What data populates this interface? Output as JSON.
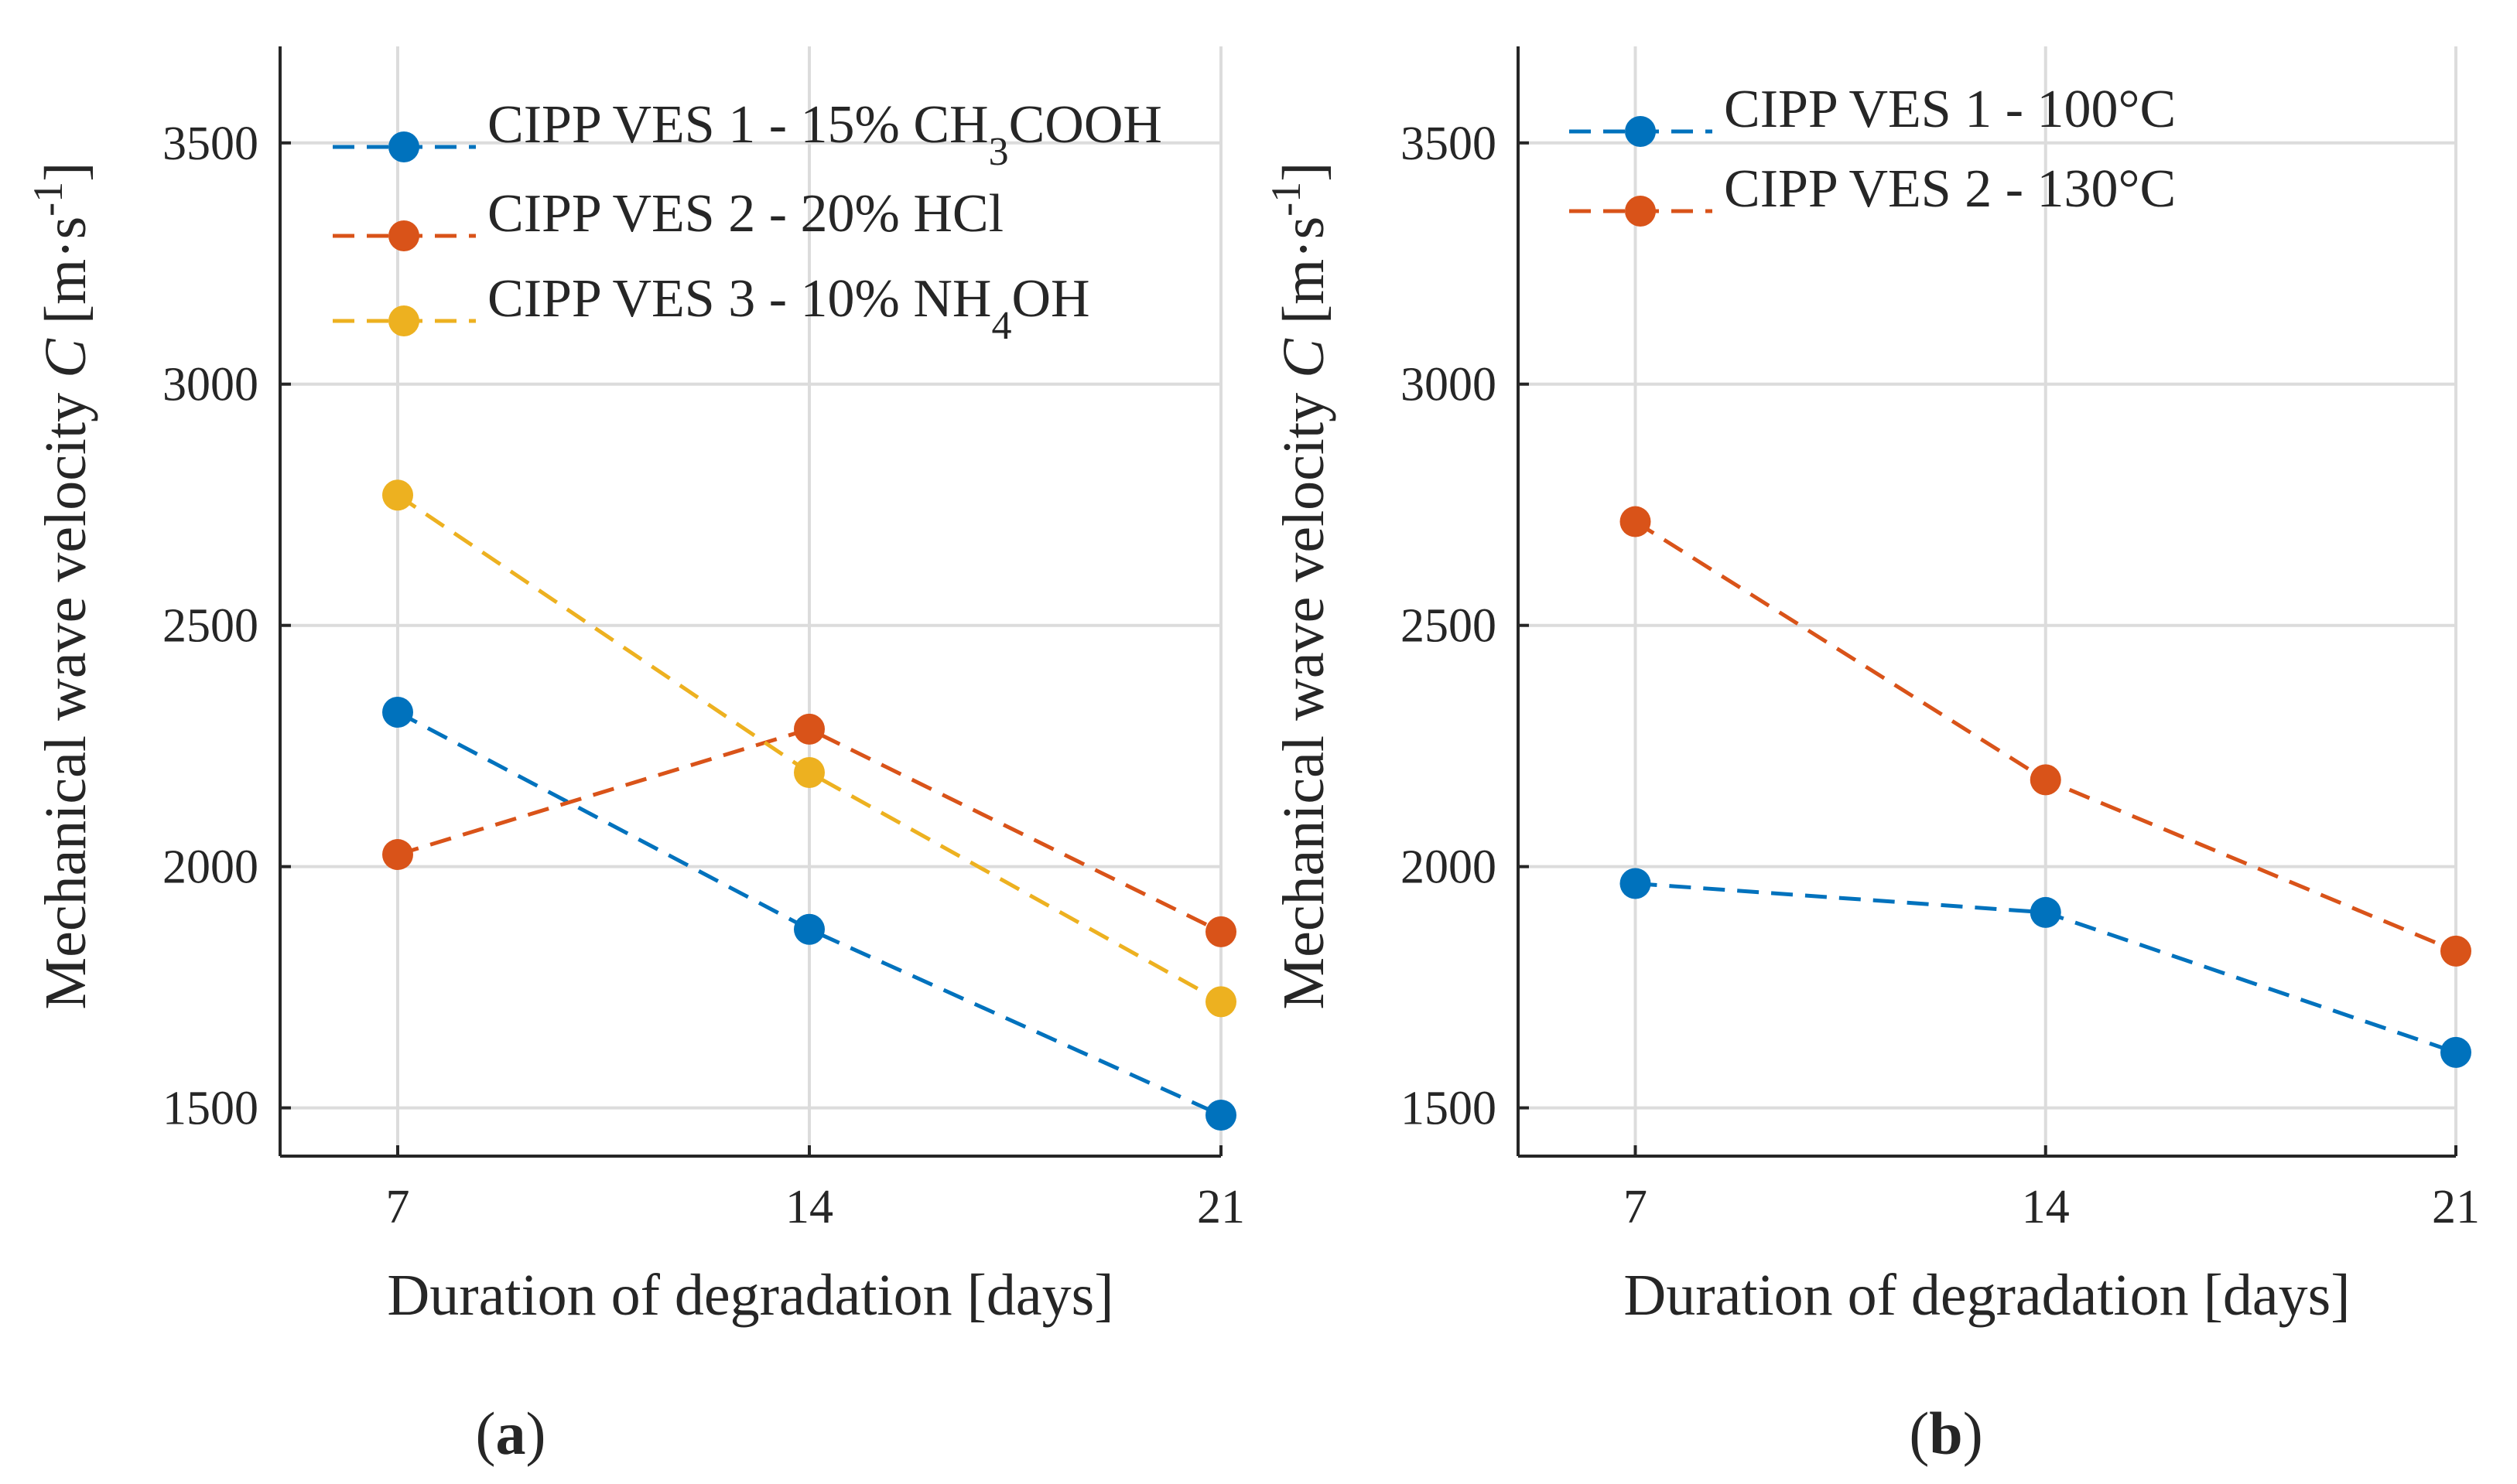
{
  "chart_data": [
    {
      "type": "line",
      "panel_label": "a",
      "xlabel": "Duration of degradation [days]",
      "ylabel": {
        "main": "Mechanical wave velocity",
        "symbol": "C",
        "unit_open": "[m·s",
        "unit_exp": "-1",
        "unit_close": "]"
      },
      "x": [
        7,
        14,
        21
      ],
      "x_ticks": [
        "7",
        "14",
        "21"
      ],
      "xlim": [
        5,
        21
      ],
      "y_ticks": [
        "1500",
        "2000",
        "2500",
        "3000",
        "3500"
      ],
      "y_tick_values": [
        1500,
        2000,
        2500,
        3000,
        3500
      ],
      "ylim": [
        1400,
        3700
      ],
      "grid": true,
      "legend_position": "top-right",
      "series": [
        {
          "name": "CIPP VES 1 - 15% CH3COOH",
          "label_main": "CIPP VES 1 - 15% CH",
          "label_sub": "3",
          "label_tail": "COOH",
          "color": "#0072BD",
          "values": [
            2320,
            1870,
            1485
          ]
        },
        {
          "name": "CIPP VES 2 - 20% HCl",
          "label_main": "CIPP VES 2 - 20% HCl",
          "label_sub": "",
          "label_tail": "",
          "color": "#D95319",
          "values": [
            2025,
            2285,
            1865
          ]
        },
        {
          "name": "CIPP VES 3 - 10% NH4OH",
          "label_main": "CIPP VES 3 - 10% NH",
          "label_sub": "4",
          "label_tail": "OH",
          "color": "#EDB120",
          "values": [
            2770,
            2195,
            1720
          ]
        }
      ]
    },
    {
      "type": "line",
      "panel_label": "b",
      "xlabel": "Duration of degradation [days]",
      "ylabel": {
        "main": "Mechanical wave velocity",
        "symbol": "C",
        "unit_open": "[m·s",
        "unit_exp": "-1",
        "unit_close": "]"
      },
      "x": [
        7,
        14,
        21
      ],
      "x_ticks": [
        "7",
        "14",
        "21"
      ],
      "xlim": [
        5,
        21
      ],
      "y_ticks": [
        "1500",
        "2000",
        "2500",
        "3000",
        "3500"
      ],
      "y_tick_values": [
        1500,
        2000,
        2500,
        3000,
        3500
      ],
      "ylim": [
        1400,
        3700
      ],
      "grid": true,
      "legend_position": "top-right",
      "series": [
        {
          "name": "CIPP VES 1 - 100°C",
          "label_main": "CIPP VES 1 - 100°C",
          "label_sub": "",
          "label_tail": "",
          "color": "#0072BD",
          "values": [
            1965,
            1905,
            1615
          ]
        },
        {
          "name": "CIPP VES 2 - 130°C",
          "label_main": "CIPP VES 2 - 130°C",
          "label_sub": "",
          "label_tail": "",
          "color": "#D95319",
          "values": [
            2715,
            2180,
            1825
          ]
        }
      ]
    }
  ]
}
